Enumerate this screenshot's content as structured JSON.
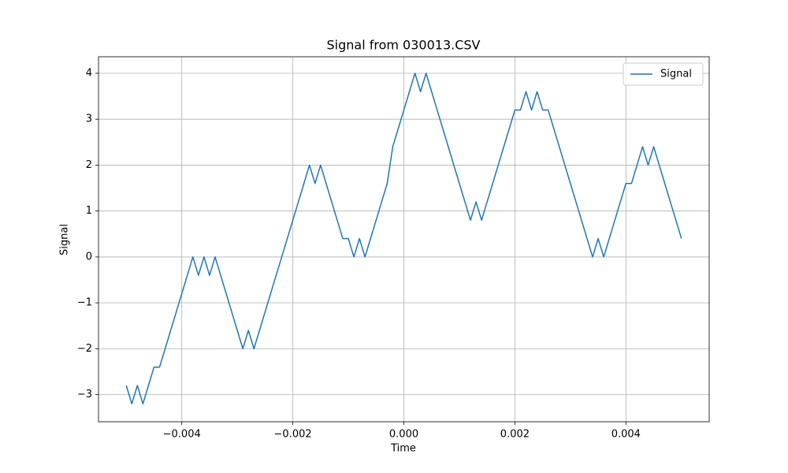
{
  "chart_data": {
    "type": "line",
    "title": "Signal from 030013.CSV",
    "x_label": "Time",
    "y_label": "Signal",
    "x": [
      -0.005,
      -0.0049,
      -0.0048,
      -0.0047,
      -0.0046,
      -0.0045,
      -0.0044,
      -0.0043,
      -0.0042,
      -0.0041,
      -0.004,
      -0.0039,
      -0.0038,
      -0.0037,
      -0.0036,
      -0.0035,
      -0.0034,
      -0.0033,
      -0.0032,
      -0.0031,
      -0.003,
      -0.0029,
      -0.0028,
      -0.0027,
      -0.0026,
      -0.0025,
      -0.0024,
      -0.0023,
      -0.0022,
      -0.0021,
      -0.002,
      -0.0019,
      -0.0018,
      -0.0017,
      -0.0016,
      -0.0015,
      -0.0014,
      -0.0013,
      -0.0012,
      -0.0011,
      -0.001,
      -0.0009,
      -0.0008,
      -0.0007,
      -0.0006,
      -0.0005,
      -0.0004,
      -0.0003,
      -0.0002,
      -0.0001,
      0,
      0.0001,
      0.0002,
      0.0003,
      0.0004,
      0.0005,
      0.0006,
      0.0007,
      0.0008,
      0.0009,
      0.001,
      0.0011,
      0.0012,
      0.0013,
      0.0014,
      0.0015,
      0.0016,
      0.0017,
      0.0018,
      0.0019,
      0.002,
      0.0021,
      0.0022,
      0.0023,
      0.0024,
      0.0025,
      0.0026,
      0.0027,
      0.0028,
      0.0029,
      0.003,
      0.0031,
      0.0032,
      0.0033,
      0.0034,
      0.0035,
      0.0036,
      0.0037,
      0.0038,
      0.0039,
      0.004,
      0.0041,
      0.0042,
      0.0043,
      0.0044,
      0.0045,
      0.0046,
      0.0047,
      0.0048,
      0.0049,
      0.005
    ],
    "series": [
      {
        "name": "Signal",
        "color": "#1f77b4",
        "values": [
          -2.8,
          -3.2,
          -2.8,
          -3.2,
          -2.8,
          -2.4,
          -2.4,
          -2.0,
          -1.6,
          -1.2,
          -0.8,
          -0.4,
          0.0,
          -0.4,
          0.0,
          -0.4,
          0.0,
          -0.4,
          -0.8,
          -1.2,
          -1.6,
          -2.0,
          -1.6,
          -2.0,
          -1.6,
          -1.2,
          -0.8,
          -0.4,
          0.0,
          0.4,
          0.8,
          1.2,
          1.6,
          2.0,
          1.6,
          2.0,
          1.6,
          1.2,
          0.8,
          0.4,
          0.4,
          0.0,
          0.4,
          0.0,
          0.4,
          0.8,
          1.2,
          1.6,
          2.4,
          2.8,
          3.2,
          3.6,
          4.0,
          3.6,
          4.0,
          3.6,
          3.2,
          2.8,
          2.4,
          2.0,
          1.6,
          1.2,
          0.8,
          1.2,
          0.8,
          1.2,
          1.6,
          2.0,
          2.4,
          2.8,
          3.2,
          3.2,
          3.6,
          3.2,
          3.6,
          3.2,
          3.2,
          2.8,
          2.4,
          2.0,
          1.6,
          1.2,
          0.8,
          0.4,
          0.0,
          0.4,
          0.0,
          0.4,
          0.8,
          1.2,
          1.6,
          1.6,
          2.0,
          2.4,
          2.0,
          2.4,
          2.0,
          1.6,
          1.2,
          0.8,
          0.4
        ]
      }
    ],
    "xlim": [
      -0.0055,
      0.0055
    ],
    "xticks": [
      {
        "value": -0.004,
        "label": "−0.004"
      },
      {
        "value": -0.002,
        "label": "−0.002"
      },
      {
        "value": 0,
        "label": "0.000"
      },
      {
        "value": 0.002,
        "label": "0.002"
      },
      {
        "value": 0.004,
        "label": "0.004"
      }
    ],
    "ylim": [
      -3.59,
      4.36
    ],
    "yticks": [
      {
        "value": -3,
        "label": "−3"
      },
      {
        "value": -2,
        "label": "−2"
      },
      {
        "value": -1,
        "label": "−1"
      },
      0,
      1,
      2,
      3,
      4
    ],
    "grid": true,
    "legend": "upper right"
  }
}
